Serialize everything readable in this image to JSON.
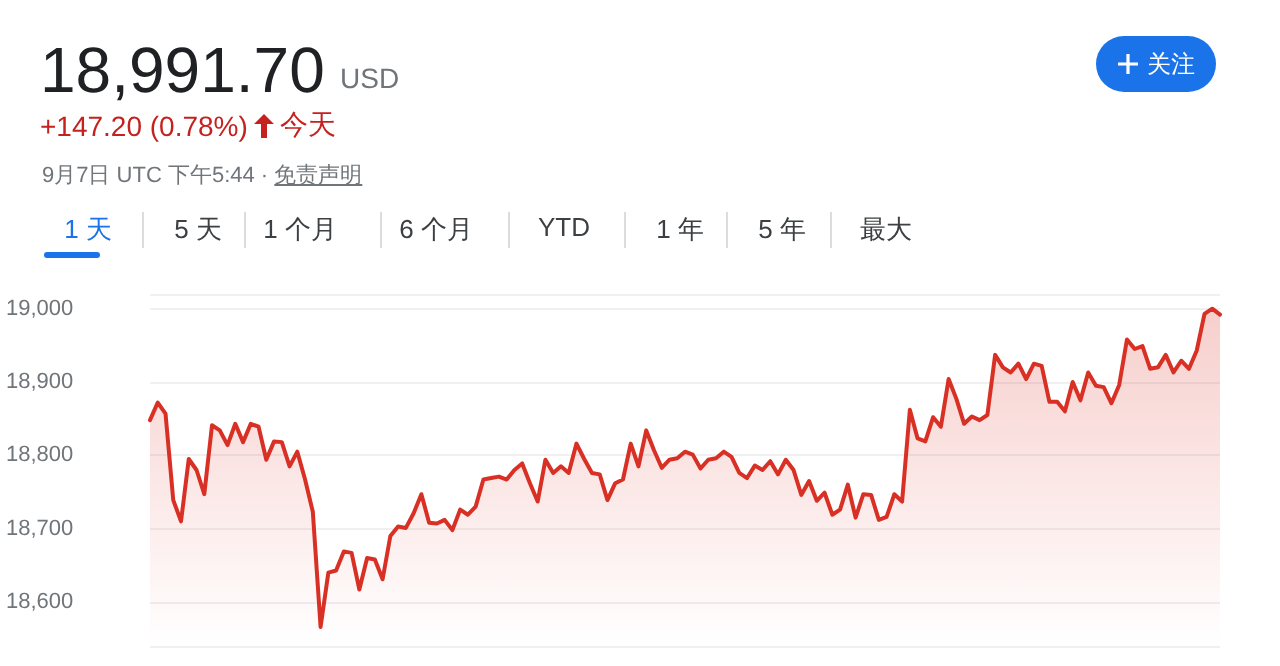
{
  "chart_data": {
    "type": "area",
    "title": "18,991.70",
    "subtitle": "+147.20 (0.78%)",
    "annotations": [
      "USD",
      "今天",
      "9月7日 UTC 下午5:44 ·",
      "免责声明",
      "1 天",
      "5 天",
      "1 个月",
      "6 个月",
      "YTD",
      "1 年",
      "5 年",
      "最大",
      "关注"
    ],
    "categories": [
      null,
      null,
      null,
      null,
      null,
      null,
      null,
      null,
      null,
      null,
      null,
      null,
      null,
      null,
      null,
      null,
      null,
      null,
      null,
      null,
      null,
      null,
      null,
      null,
      null,
      null,
      null,
      null,
      null,
      null,
      null,
      null,
      null,
      null,
      null,
      null,
      null,
      null,
      null,
      null,
      null,
      null,
      null,
      null,
      null,
      null,
      null,
      null,
      null,
      null,
      null,
      null,
      null,
      null,
      null,
      null,
      null,
      null,
      null,
      null,
      null,
      null,
      null,
      null,
      null,
      null,
      null,
      null,
      null,
      null,
      null,
      null,
      null,
      null,
      null,
      null,
      null,
      null,
      null,
      null,
      null,
      null,
      null,
      null,
      null,
      null,
      null,
      null,
      null,
      null,
      null,
      null,
      null,
      null,
      null,
      null,
      null,
      null,
      null,
      null,
      null,
      null,
      null,
      null,
      null,
      null,
      null,
      null,
      null,
      null,
      null,
      null,
      null,
      null,
      null,
      null,
      null,
      null,
      null,
      null,
      null,
      null,
      null,
      null,
      null,
      null,
      null,
      null,
      null,
      null,
      null,
      null,
      null,
      null,
      null,
      null,
      null,
      null,
      null
    ],
    "series": [
      {
        "color": "#d93025",
        "values": [
          18848,
          18872,
          18857,
          18739,
          18710,
          18795,
          18780,
          18747,
          18841,
          18834,
          18814,
          18843,
          18818,
          18843,
          18839,
          18794,
          18819,
          18818,
          18785,
          18805,
          18767,
          18723,
          18566,
          18640,
          18643,
          18669,
          18667,
          18617,
          18660,
          18658,
          18631,
          18690,
          18703,
          18701,
          18721,
          18747,
          18708,
          18707,
          18712,
          18698,
          18726,
          18719,
          18730,
          18767,
          18769,
          18771,
          18767,
          18780,
          18789,
          18762,
          18737,
          18794,
          18776,
          18785,
          18776,
          18816,
          18795,
          18776,
          18774,
          18739,
          18762,
          18767,
          18816,
          18785,
          18834,
          18807,
          18783,
          18794,
          18796,
          18805,
          18801,
          18782,
          18794,
          18796,
          18805,
          18798,
          18776,
          18769,
          18786,
          18780,
          18792,
          18774,
          18794,
          18780,
          18746,
          18765,
          18738,
          18749,
          18719,
          18726,
          18760,
          18715,
          18747,
          18746,
          18712,
          18716,
          18747,
          18737,
          18862,
          18823,
          18819,
          18852,
          18839,
          18904,
          18877,
          18843,
          18853,
          18848,
          18855,
          18937,
          18920,
          18913,
          18925,
          18904,
          18925,
          18922,
          18873,
          18873,
          18860,
          18900,
          18875,
          18913,
          18895,
          18893,
          18871,
          18896,
          18958,
          18945,
          18949,
          18918,
          18920,
          18937,
          18913,
          18929,
          18918,
          18943,
          18993,
          19000,
          18992
        ]
      }
    ],
    "ylim": [
      18540,
      19020
    ],
    "yticks": [
      {
        "value": 18600,
        "label": "18,600"
      },
      {
        "value": 18700,
        "label": "18,700"
      },
      {
        "value": 18800,
        "label": "18,800"
      },
      {
        "value": 18900,
        "label": "18,900"
      },
      {
        "value": 19000,
        "label": "19,000"
      }
    ],
    "tick_labels": "y",
    "grid": "y",
    "line_style": "solid"
  }
}
